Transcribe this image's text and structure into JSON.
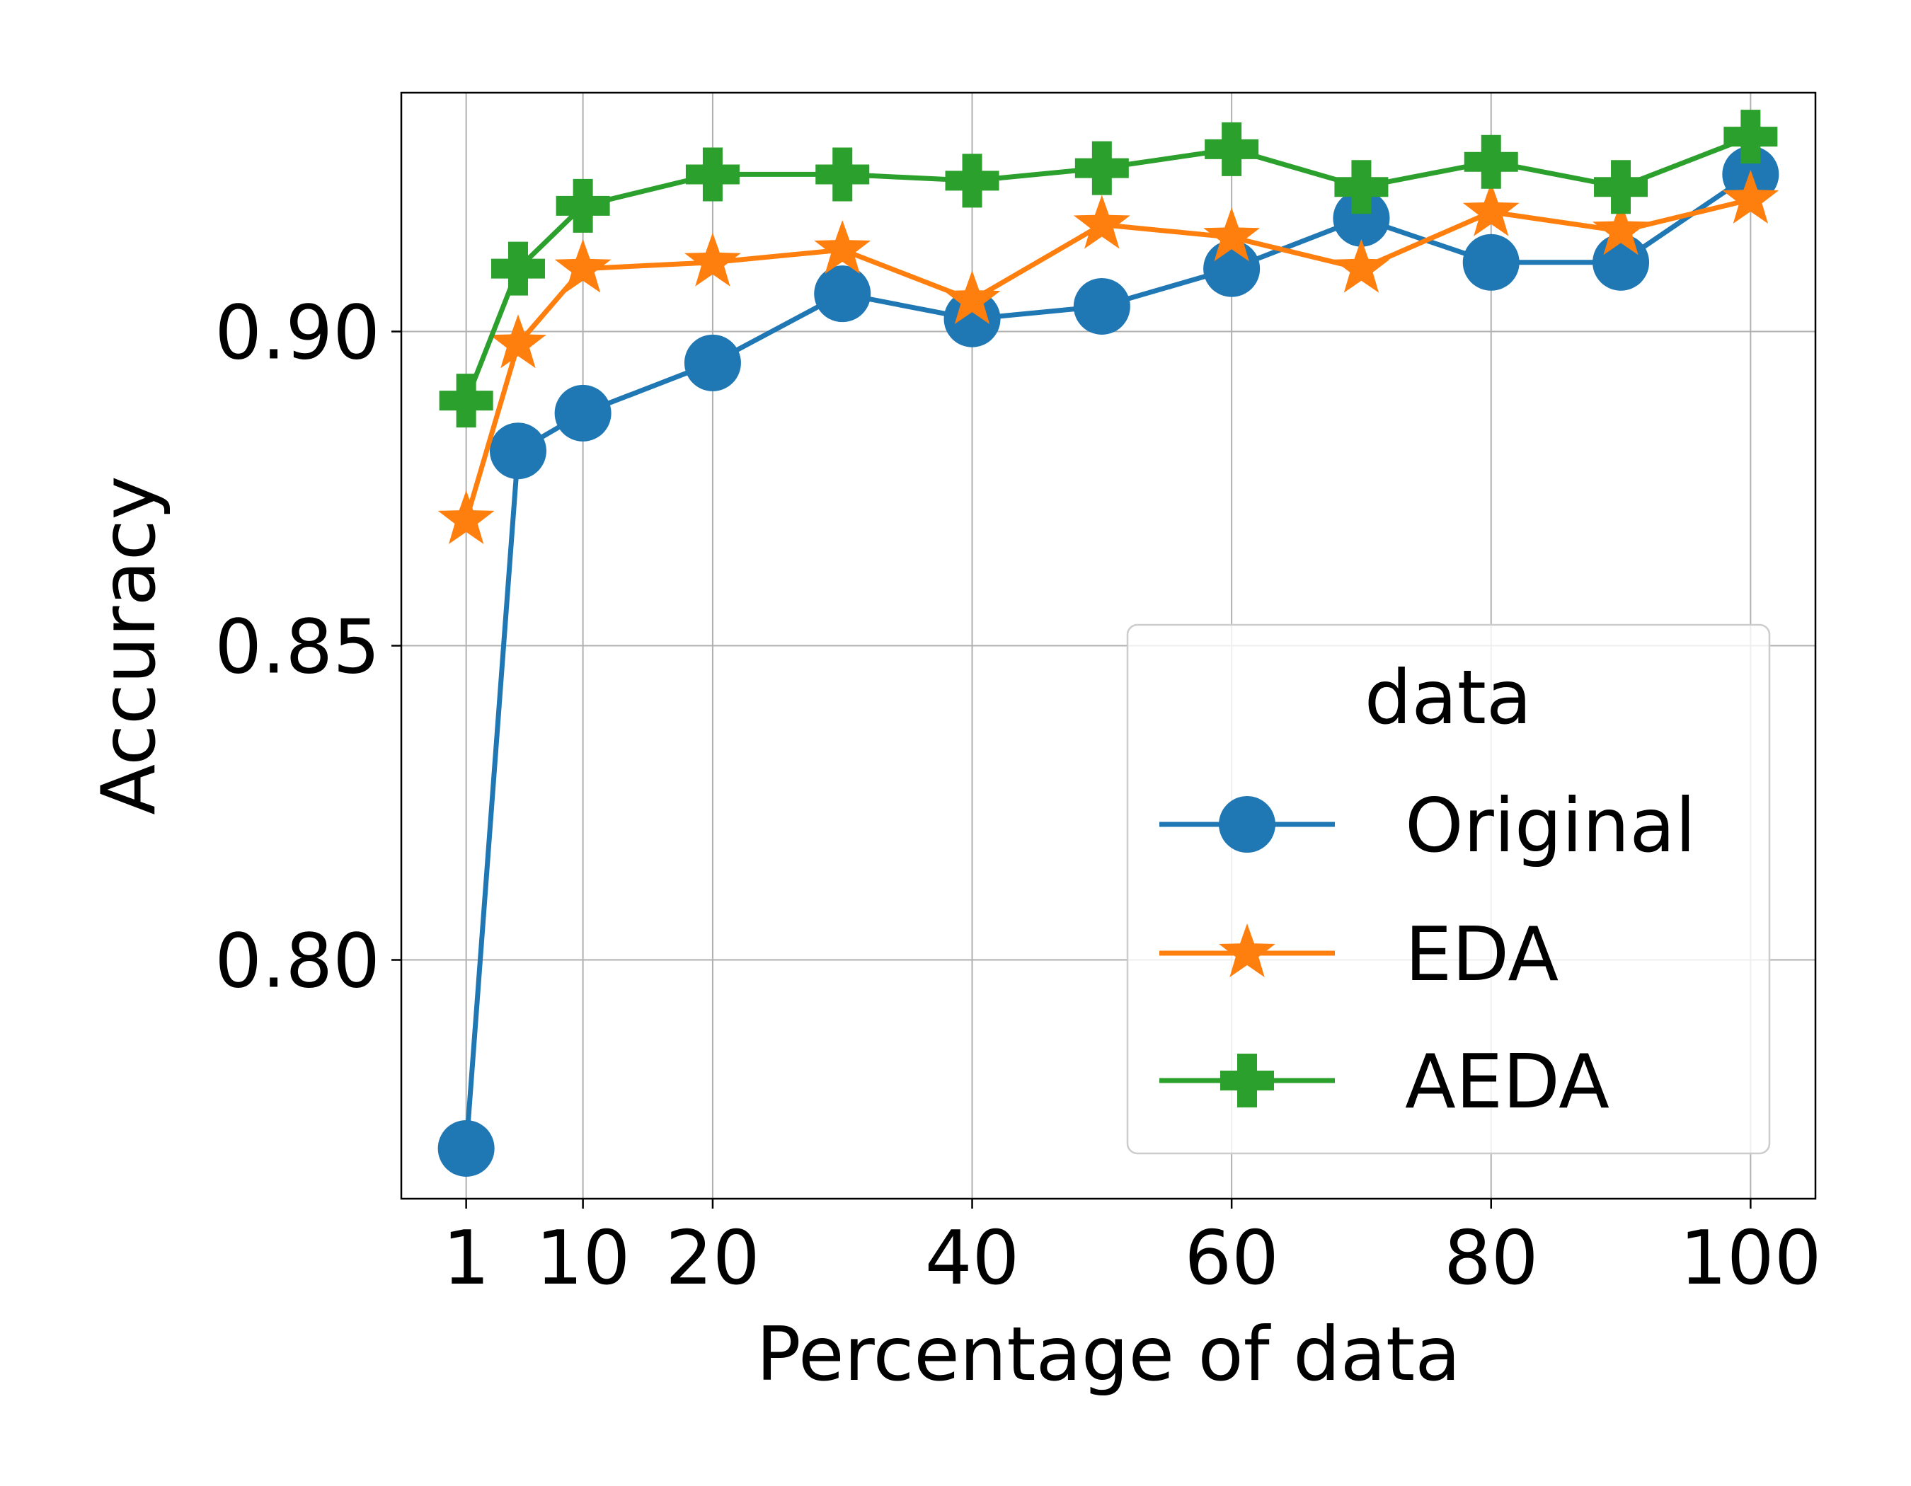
{
  "chart_data": {
    "type": "line",
    "title": "",
    "xlabel": "Percentage of data",
    "ylabel": "Accuracy",
    "xlim": [
      -4,
      105
    ],
    "ylim": [
      0.762,
      0.938
    ],
    "xticks": [
      1,
      10,
      20,
      40,
      60,
      80,
      100
    ],
    "xtick_labels": [
      "1",
      "10",
      "20",
      "40",
      "60",
      "80",
      "100"
    ],
    "yticks": [
      0.8,
      0.85,
      0.9
    ],
    "ytick_labels": [
      "0.80",
      "0.85",
      "0.90"
    ],
    "grid": true,
    "legend": {
      "title": "data",
      "position": "lower-right"
    },
    "x": [
      1,
      5,
      10,
      20,
      30,
      40,
      50,
      60,
      70,
      80,
      90,
      100
    ],
    "series": [
      {
        "name": "Original",
        "marker": "circle",
        "color": "#1f77b4",
        "values": [
          0.77,
          0.881,
          0.887,
          0.895,
          0.906,
          0.902,
          0.904,
          0.91,
          0.918,
          0.911,
          0.911,
          0.925
        ]
      },
      {
        "name": "EDA",
        "marker": "star",
        "color": "#ff7f0e",
        "values": [
          0.87,
          0.898,
          0.91,
          0.911,
          0.913,
          0.905,
          0.917,
          0.915,
          0.91,
          0.919,
          0.916,
          0.921
        ]
      },
      {
        "name": "AEDA",
        "marker": "plus",
        "color": "#2ca02c",
        "values": [
          0.889,
          0.91,
          0.92,
          0.925,
          0.925,
          0.924,
          0.926,
          0.929,
          0.923,
          0.927,
          0.923,
          0.931
        ]
      }
    ]
  }
}
